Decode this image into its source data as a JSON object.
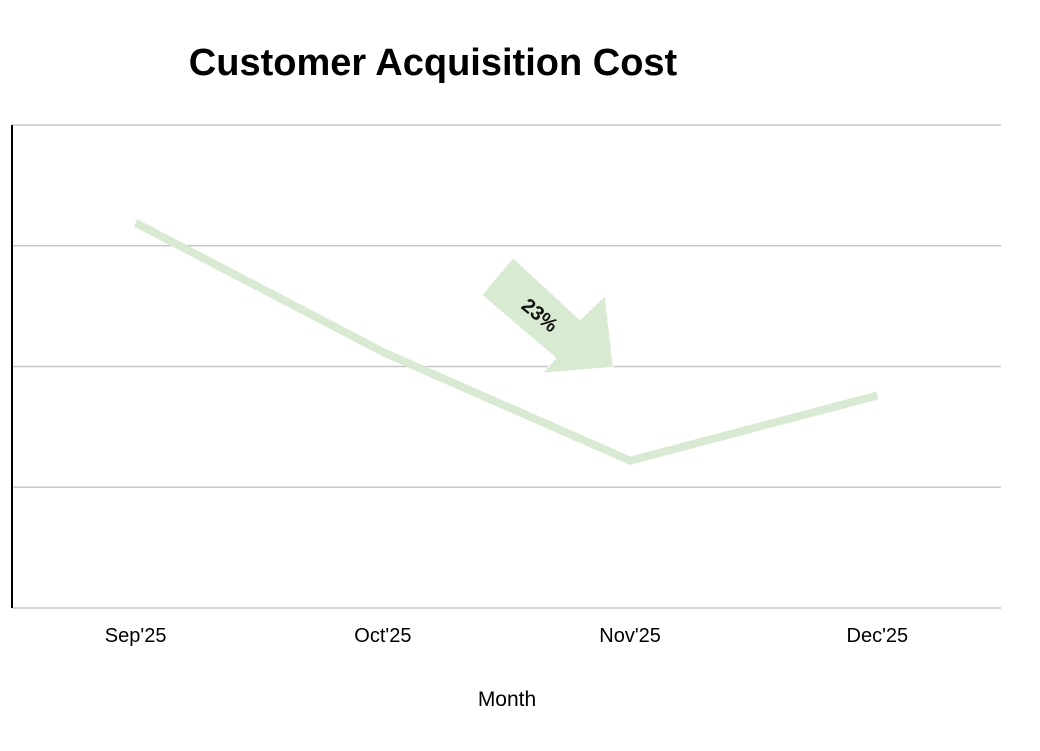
{
  "chart_data": {
    "type": "line",
    "title": "Customer Acquisition Cost",
    "xlabel": "Month",
    "ylabel": "",
    "categories": [
      "Sep'25",
      "Oct'25",
      "Nov'25",
      "Dec'25"
    ],
    "series": [
      {
        "name": "Customer Acquisition Cost",
        "values": [
          3.19,
          2.12,
          1.22,
          1.76
        ],
        "color": "#d9ead3"
      }
    ],
    "ylim": [
      0,
      4
    ],
    "y_gridlines": [
      0,
      1,
      2,
      3,
      4
    ],
    "grid": true,
    "annotations": [
      {
        "text": "23%",
        "type": "arrow-down",
        "color": "#d9ead3"
      }
    ]
  }
}
